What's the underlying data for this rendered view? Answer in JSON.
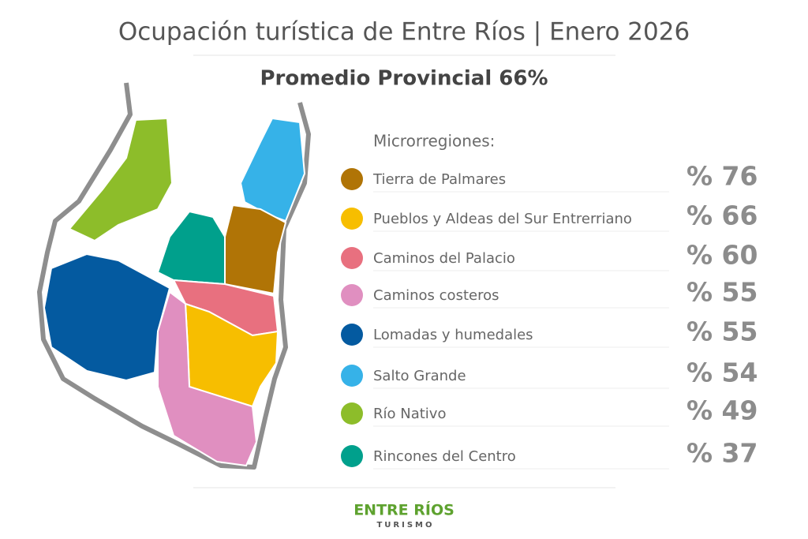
{
  "header": {
    "title": "Ocupación turística de Entre Ríos | Enero 2026",
    "subtitle": "Promedio Provincial 66%"
  },
  "legend": {
    "heading": "Microrregiones:",
    "items": [
      {
        "name": "Tierra de Palmares",
        "value": "% 76",
        "color": "#b07406"
      },
      {
        "name": "Pueblos y Aldeas del Sur Entrerriano",
        "value": "% 66",
        "color": "#f7be00"
      },
      {
        "name": "Caminos del Palacio",
        "value": "% 60",
        "color": "#e8707f"
      },
      {
        "name": "Caminos costeros",
        "value": "% 55",
        "color": "#e08fc0"
      },
      {
        "name": "Lomadas y humedales",
        "value": "% 55",
        "color": "#045aa0"
      },
      {
        "name": "Salto Grande",
        "value": "% 54",
        "color": "#36b2e8"
      },
      {
        "name": "Río Nativo",
        "value": "% 49",
        "color": "#8dbd2a"
      },
      {
        "name": "Rincones del Centro",
        "value": "% 37",
        "color": "#00a08c"
      }
    ]
  },
  "footer": {
    "brand": "ENTRE RÍOS",
    "tagline": "TURISMO"
  }
}
